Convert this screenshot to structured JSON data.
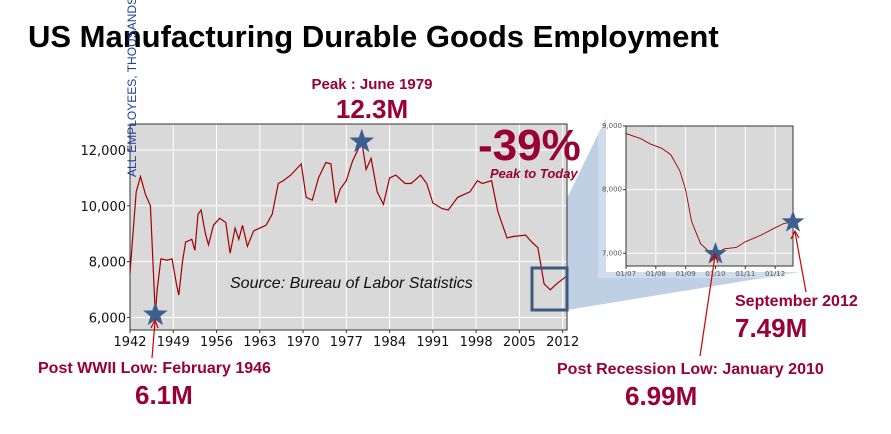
{
  "title": "US Manufacturing Durable Goods Employment",
  "colors": {
    "line": "#a00000",
    "annotation": "#990033",
    "star": "#3d5f8f",
    "plot_bg": "#d9d9d9",
    "zoom_box": "#3a5a80",
    "zoom_fill": "#a9c0dc"
  },
  "icons": {
    "marker": "star-icon",
    "arrow": "arrow-icon"
  },
  "annotations": {
    "peak_label": "Peak : June 1979",
    "peak_value": "12.3M",
    "change": "-39%",
    "change_label": "Peak to Today",
    "low_wwii_label": "Post WWII Low: February 1946",
    "low_wwii_value": "6.1M",
    "sep2012_label": "September 2012",
    "sep2012_value": "7.49M",
    "recession_low_label": "Post Recession Low: January 2010",
    "recession_low_value": "6.99M",
    "source": "Source: Bureau of Labor Statistics"
  },
  "chart_data": [
    {
      "type": "line",
      "title": "",
      "ylabel": "ALL EMPLOYEES, THOUSANDS",
      "xlabel": "",
      "xlim": [
        1942,
        2012.7
      ],
      "ylim": [
        5550,
        12930
      ],
      "grid": true,
      "xticks": [
        "1942",
        "1949",
        "1956",
        "1963",
        "1970",
        "1977",
        "1984",
        "1991",
        "1998",
        "2005",
        "2012"
      ],
      "yticks": [
        "6,000",
        "8,000",
        "10,000",
        "12,000"
      ],
      "series": [
        {
          "x": [
            1942,
            1943,
            1943.7,
            1944.5,
            1945.3,
            1945.6,
            1946.1,
            1946.4,
            1947,
            1948,
            1948.8,
            1949.5,
            1949.9,
            1950.5,
            1951,
            1952,
            1952.5,
            1953,
            1953.5,
            1954.2,
            1954.7,
            1955.5,
            1956.5,
            1957.5,
            1958.2,
            1959,
            1959.6,
            1960.2,
            1961,
            1962,
            1964,
            1965,
            1966,
            1966.8,
            1968,
            1969.7,
            1970.5,
            1971.5,
            1972.5,
            1973.7,
            1974.5,
            1975.3,
            1976,
            1977,
            1978,
            1979.5,
            1980.2,
            1981,
            1982,
            1983,
            1984,
            1985,
            1986.5,
            1987.5,
            1989,
            1990,
            1991,
            1992.5,
            1993.5,
            1995,
            1997,
            1998.2,
            1999,
            2000.5,
            2001.5,
            2003,
            2004,
            2006,
            2007,
            2008,
            2009,
            2010,
            2011,
            2012.7
          ],
          "y": [
            7600,
            10500,
            11050,
            10400,
            10000,
            8500,
            6100,
            7000,
            8100,
            8050,
            8100,
            7200,
            6800,
            8000,
            8700,
            8800,
            8400,
            9700,
            9850,
            9000,
            8600,
            9300,
            9550,
            9400,
            8300,
            9200,
            8800,
            9300,
            8550,
            9100,
            9300,
            9700,
            10800,
            10900,
            11100,
            11500,
            10300,
            10200,
            11000,
            11550,
            11500,
            10100,
            10600,
            10900,
            11600,
            12300,
            11300,
            11700,
            10500,
            10050,
            11000,
            11100,
            10800,
            10800,
            11100,
            10800,
            10100,
            9900,
            9850,
            10300,
            10500,
            10900,
            10800,
            10900,
            9800,
            8850,
            8900,
            8950,
            8700,
            8500,
            7200,
            6990,
            7200,
            7490
          ]
        }
      ],
      "markers": [
        {
          "x": 1946.1,
          "y": 6100
        },
        {
          "x": 1979.5,
          "y": 12300
        }
      ],
      "zoom_region": {
        "x": [
          2007,
          2012.7
        ],
        "y": [
          6700,
          7900
        ]
      }
    },
    {
      "type": "line",
      "title": "",
      "xlim": [
        2007,
        2012.6
      ],
      "ylim": [
        6800,
        9000
      ],
      "grid": true,
      "xticks": [
        "01/07",
        "01/08",
        "01/09",
        "01/10",
        "01/11",
        "01/12"
      ],
      "yticks": [
        "7,000",
        "8,000",
        "9,000"
      ],
      "series": [
        {
          "x": [
            2007.0,
            2007.5,
            2007.8,
            2008.2,
            2008.5,
            2008.8,
            2009.0,
            2009.2,
            2009.5,
            2009.8,
            2010.0,
            2010.3,
            2010.7,
            2011.0,
            2011.5,
            2012.0,
            2012.3,
            2012.6
          ],
          "y": [
            8880,
            8800,
            8720,
            8650,
            8550,
            8300,
            8000,
            7500,
            7150,
            7020,
            6990,
            7070,
            7090,
            7180,
            7280,
            7400,
            7470,
            7490
          ]
        }
      ],
      "markers": [
        {
          "x": 2010.0,
          "y": 6990
        },
        {
          "x": 2012.6,
          "y": 7490
        }
      ]
    }
  ]
}
